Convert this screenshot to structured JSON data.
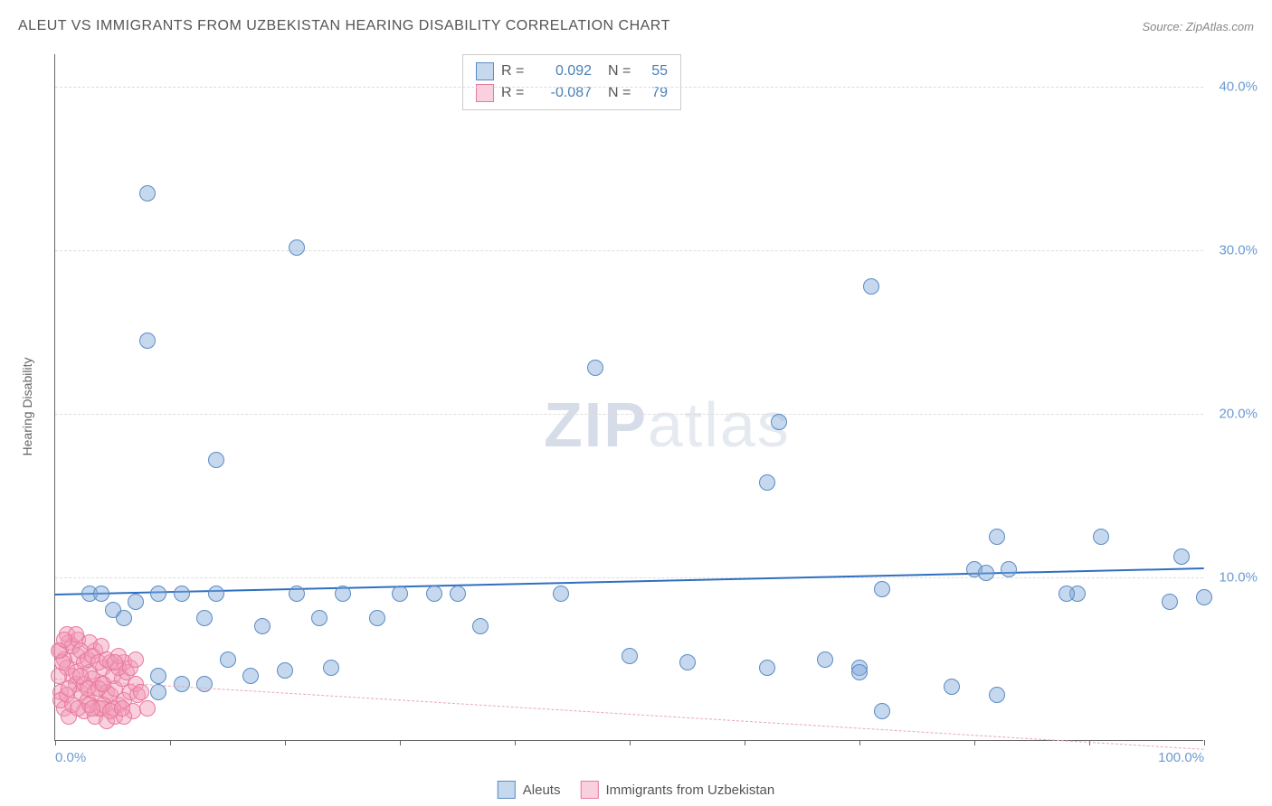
{
  "title": "ALEUT VS IMMIGRANTS FROM UZBEKISTAN HEARING DISABILITY CORRELATION CHART",
  "source_prefix": "Source: ",
  "source": "ZipAtlas.com",
  "y_axis_label": "Hearing Disability",
  "watermark_bold": "ZIP",
  "watermark_light": "atlas",
  "chart": {
    "type": "scatter",
    "background_color": "#ffffff",
    "grid_color": "#dddddd",
    "axis_color": "#666666",
    "xlim": [
      0,
      100
    ],
    "ylim": [
      0,
      42
    ],
    "x_ticks": [
      0,
      10,
      20,
      30,
      40,
      50,
      60,
      70,
      80,
      90,
      100
    ],
    "x_tick_labels_shown": {
      "0": "0.0%",
      "100": "100.0%"
    },
    "y_grid": [
      10,
      20,
      30,
      40
    ],
    "y_tick_labels": {
      "10": "10.0%",
      "20": "20.0%",
      "30": "30.0%",
      "40": "40.0%"
    },
    "point_radius": 9,
    "point_opacity": 0.55,
    "series": [
      {
        "key": "aleuts",
        "label": "Aleuts",
        "color": "#7fa8d9",
        "border": "#5b8bc4",
        "fill": "rgba(127,168,217,0.45)",
        "trend": {
          "color": "#2f6fc0",
          "width": 2.5,
          "dash": "solid",
          "y_start": 9.0,
          "y_end": 10.6
        },
        "stats": {
          "R": "0.092",
          "N": "55"
        },
        "points": [
          [
            8,
            33.5
          ],
          [
            21,
            30.2
          ],
          [
            8,
            24.5
          ],
          [
            14,
            17.2
          ],
          [
            47,
            22.8
          ],
          [
            63,
            19.5
          ],
          [
            62,
            15.8
          ],
          [
            71,
            27.8
          ],
          [
            82,
            12.5
          ],
          [
            91,
            12.5
          ],
          [
            98,
            11.3
          ],
          [
            80,
            10.5
          ],
          [
            81,
            10.3
          ],
          [
            83,
            10.5
          ],
          [
            89,
            9.0
          ],
          [
            72,
            9.3
          ],
          [
            70,
            4.5
          ],
          [
            70,
            4.2
          ],
          [
            62,
            4.5
          ],
          [
            67,
            5.0
          ],
          [
            55,
            4.8
          ],
          [
            72,
            1.8
          ],
          [
            78,
            3.3
          ],
          [
            82,
            2.8
          ],
          [
            88,
            9.0
          ],
          [
            100,
            8.8
          ],
          [
            97,
            8.5
          ],
          [
            3,
            9.0
          ],
          [
            4,
            9.0
          ],
          [
            5,
            8.0
          ],
          [
            6,
            7.5
          ],
          [
            7,
            8.5
          ],
          [
            9,
            9.0
          ],
          [
            11,
            9.0
          ],
          [
            13,
            7.5
          ],
          [
            14,
            9.0
          ],
          [
            15,
            5.0
          ],
          [
            17,
            4.0
          ],
          [
            18,
            7.0
          ],
          [
            20,
            4.3
          ],
          [
            21,
            9.0
          ],
          [
            23,
            7.5
          ],
          [
            24,
            4.5
          ],
          [
            25,
            9.0
          ],
          [
            28,
            7.5
          ],
          [
            30,
            9.0
          ],
          [
            33,
            9.0
          ],
          [
            35,
            9.0
          ],
          [
            37,
            7.0
          ],
          [
            44,
            9.0
          ],
          [
            50,
            5.2
          ],
          [
            9,
            4.0
          ],
          [
            11,
            3.5
          ],
          [
            13,
            3.5
          ],
          [
            9,
            3.0
          ]
        ]
      },
      {
        "key": "uzbekistan",
        "label": "Immigrants from Uzbekistan",
        "color": "#f29ab5",
        "border": "#e87a9e",
        "fill": "rgba(242,154,181,0.45)",
        "trend": {
          "color": "#e8a6b8",
          "width": 1,
          "dash": "dashed",
          "y_start": 3.8,
          "y_end": -0.5
        },
        "stats": {
          "R": "-0.087",
          "N": "79"
        },
        "points": [
          [
            0.5,
            5.5
          ],
          [
            0.8,
            5.0
          ],
          [
            1.0,
            4.5
          ],
          [
            1.2,
            6.0
          ],
          [
            1.5,
            4.0
          ],
          [
            1.8,
            3.5
          ],
          [
            2.0,
            5.2
          ],
          [
            2.2,
            3.0
          ],
          [
            2.5,
            4.8
          ],
          [
            2.8,
            2.5
          ],
          [
            3.0,
            4.2
          ],
          [
            3.2,
            3.8
          ],
          [
            3.5,
            5.5
          ],
          [
            3.8,
            2.0
          ],
          [
            4.0,
            3.5
          ],
          [
            4.2,
            4.5
          ],
          [
            4.5,
            3.0
          ],
          [
            4.8,
            2.8
          ],
          [
            5.0,
            4.0
          ],
          [
            5.2,
            3.2
          ],
          [
            5.5,
            2.2
          ],
          [
            5.8,
            3.8
          ],
          [
            6.0,
            2.5
          ],
          [
            6.2,
            4.2
          ],
          [
            6.5,
            3.0
          ],
          [
            6.8,
            1.8
          ],
          [
            7.0,
            3.5
          ],
          [
            7.2,
            2.8
          ],
          [
            8.0,
            2.0
          ],
          [
            1.0,
            6.5
          ],
          [
            1.5,
            5.8
          ],
          [
            2.0,
            6.2
          ],
          [
            0.5,
            3.0
          ],
          [
            0.8,
            2.0
          ],
          [
            1.2,
            1.5
          ],
          [
            3.0,
            6.0
          ],
          [
            4.0,
            5.8
          ],
          [
            2.5,
            1.8
          ],
          [
            3.5,
            1.5
          ],
          [
            4.5,
            1.2
          ],
          [
            0.3,
            4.0
          ],
          [
            0.6,
            4.8
          ],
          [
            1.8,
            6.5
          ],
          [
            2.2,
            5.5
          ],
          [
            2.8,
            5.0
          ],
          [
            3.2,
            5.2
          ],
          [
            3.8,
            4.8
          ],
          [
            4.2,
            2.2
          ],
          [
            4.8,
            4.8
          ],
          [
            5.2,
            1.5
          ],
          [
            5.5,
            4.5
          ],
          [
            6.0,
            4.8
          ],
          [
            0.5,
            2.5
          ],
          [
            1.0,
            2.8
          ],
          [
            1.5,
            2.2
          ],
          [
            2.0,
            2.0
          ],
          [
            2.5,
            3.5
          ],
          [
            3.0,
            2.2
          ],
          [
            3.5,
            3.0
          ],
          [
            4.0,
            2.0
          ],
          [
            4.5,
            5.0
          ],
          [
            5.0,
            2.0
          ],
          [
            5.5,
            5.2
          ],
          [
            6.0,
            1.5
          ],
          [
            6.5,
            4.5
          ],
          [
            7.0,
            5.0
          ],
          [
            7.5,
            3.0
          ],
          [
            0.3,
            5.5
          ],
          [
            0.8,
            6.2
          ],
          [
            1.2,
            3.2
          ],
          [
            1.8,
            4.2
          ],
          [
            2.2,
            4.0
          ],
          [
            2.8,
            3.2
          ],
          [
            3.2,
            2.0
          ],
          [
            3.8,
            3.2
          ],
          [
            4.2,
            3.5
          ],
          [
            4.8,
            1.8
          ],
          [
            5.2,
            4.8
          ],
          [
            5.8,
            2.0
          ]
        ]
      }
    ]
  },
  "stats_box": {
    "r_label": "R =",
    "n_label": "N ="
  }
}
